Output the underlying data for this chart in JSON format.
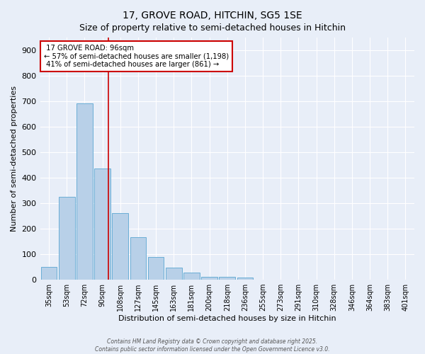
{
  "title": "17, GROVE ROAD, HITCHIN, SG5 1SE",
  "subtitle": "Size of property relative to semi-detached houses in Hitchin",
  "xlabel": "Distribution of semi-detached houses by size in Hitchin",
  "ylabel": "Number of semi-detached properties",
  "categories": [
    "35sqm",
    "53sqm",
    "72sqm",
    "90sqm",
    "108sqm",
    "127sqm",
    "145sqm",
    "163sqm",
    "181sqm",
    "200sqm",
    "218sqm",
    "236sqm",
    "255sqm",
    "273sqm",
    "291sqm",
    "310sqm",
    "328sqm",
    "346sqm",
    "364sqm",
    "383sqm",
    "401sqm"
  ],
  "values": [
    50,
    325,
    690,
    435,
    260,
    168,
    90,
    47,
    27,
    10,
    10,
    8,
    0,
    0,
    0,
    0,
    0,
    0,
    0,
    0,
    0
  ],
  "bar_color": "#b8d0e8",
  "bar_edge_color": "#6aaed6",
  "property_label": "17 GROVE ROAD: 96sqm",
  "pct_smaller": 57,
  "pct_smaller_count": 1198,
  "pct_larger": 41,
  "pct_larger_count": 861,
  "vline_color": "#cc0000",
  "annotation_box_edge_color": "#cc0000",
  "background_color": "#e8eef8",
  "plot_bg_color": "#e8eef8",
  "footer_line1": "Contains HM Land Registry data © Crown copyright and database right 2025.",
  "footer_line2": "Contains public sector information licensed under the Open Government Licence v3.0.",
  "ylim": [
    0,
    950
  ],
  "yticks": [
    0,
    100,
    200,
    300,
    400,
    500,
    600,
    700,
    800,
    900
  ],
  "title_fontsize": 10,
  "subtitle_fontsize": 9
}
